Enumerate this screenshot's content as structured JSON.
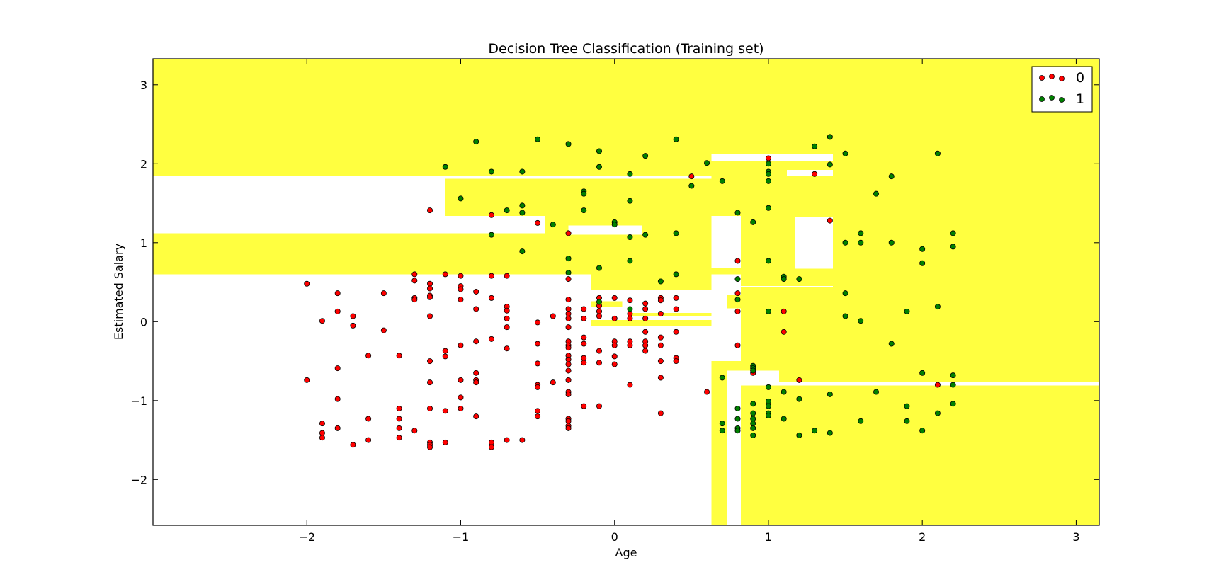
{
  "chart_data": {
    "type": "scatter",
    "title": "Decision Tree Classification (Training set)",
    "xlabel": "Age",
    "ylabel": "Estimated Salary",
    "xlim": [
      -3.0,
      3.15
    ],
    "ylim": [
      -2.58,
      3.33
    ],
    "xticks": [
      -2,
      -1,
      0,
      1,
      2,
      3
    ],
    "yticks": [
      -2,
      -1,
      0,
      1,
      2,
      3
    ],
    "xtick_labels": [
      "−2",
      "−1",
      "0",
      "1",
      "2",
      "3"
    ],
    "ytick_labels": [
      "−2",
      "−1",
      "0",
      "1",
      "2",
      "3"
    ],
    "grid": false,
    "legend": {
      "placement": "top-right",
      "entries": [
        {
          "label": "0",
          "color": "#ff0000"
        },
        {
          "label": "1",
          "color": "#008000"
        }
      ]
    },
    "region_colors": {
      "class_0": "#ffffff",
      "class_1": "#ffff40"
    },
    "regions_class1": [
      [
        -3.0,
        3.15,
        1.84,
        3.33
      ],
      [
        -3.0,
        3.15,
        0.6,
        1.12
      ],
      [
        -1.1,
        0.63,
        1.34,
        1.81
      ],
      [
        -0.45,
        0.63,
        1.1,
        1.34
      ],
      [
        -0.15,
        0.63,
        0.4,
        1.1
      ],
      [
        0.63,
        3.15,
        1.34,
        1.84
      ],
      [
        0.82,
        3.15,
        0.45,
        1.34
      ],
      [
        1.42,
        3.15,
        -0.72,
        0.45
      ],
      [
        1.42,
        3.15,
        -0.77,
        -0.72
      ],
      [
        1.07,
        1.42,
        -0.77,
        0.44
      ],
      [
        0.82,
        1.07,
        -0.62,
        0.44
      ],
      [
        0.82,
        3.15,
        -2.58,
        -0.81
      ],
      [
        0.63,
        0.82,
        -2.58,
        -0.5
      ],
      [
        -0.15,
        0.05,
        0.18,
        0.26
      ],
      [
        0.1,
        0.63,
        0.07,
        0.11
      ],
      [
        -0.15,
        0.63,
        -0.05,
        0.02
      ],
      [
        0.73,
        0.82,
        0.17,
        0.34
      ]
    ],
    "regions_class0": [
      [
        0.63,
        1.42,
        2.04,
        2.12
      ],
      [
        1.12,
        1.42,
        1.84,
        1.92
      ],
      [
        -0.3,
        0.18,
        1.1,
        1.22
      ],
      [
        0.63,
        0.82,
        0.68,
        1.33
      ],
      [
        1.17,
        1.42,
        0.67,
        1.33
      ],
      [
        0.63,
        0.73,
        0.34,
        0.45
      ],
      [
        0.05,
        0.63,
        0.11,
        0.26
      ],
      [
        0.63,
        0.73,
        -0.5,
        0.45
      ],
      [
        0.73,
        0.82,
        -1.38,
        -0.62
      ],
      [
        0.73,
        0.82,
        -2.58,
        -1.38
      ]
    ],
    "series": [
      {
        "name": "0",
        "color": "#ff0000",
        "points": [
          [
            -2.0,
            0.48
          ],
          [
            -1.9,
            0.01
          ],
          [
            -1.8,
            0.36
          ],
          [
            -1.8,
            0.13
          ],
          [
            -1.7,
            0.07
          ],
          [
            -1.7,
            -0.05
          ],
          [
            -1.5,
            0.36
          ],
          [
            -1.5,
            -0.11
          ],
          [
            -1.4,
            -0.43
          ],
          [
            -1.3,
            0.6
          ],
          [
            -1.3,
            0.52
          ],
          [
            -1.3,
            0.3
          ],
          [
            -1.3,
            0.28
          ],
          [
            -1.2,
            1.41
          ],
          [
            -1.2,
            0.48
          ],
          [
            -1.2,
            0.42
          ],
          [
            -1.2,
            0.33
          ],
          [
            -1.2,
            0.31
          ],
          [
            -1.2,
            0.07
          ],
          [
            -1.1,
            0.6
          ],
          [
            -1.1,
            -0.37
          ],
          [
            -1.1,
            -0.44
          ],
          [
            -1.0,
            0.58
          ],
          [
            -1.0,
            0.45
          ],
          [
            -1.0,
            0.41
          ],
          [
            -1.0,
            0.28
          ],
          [
            -1.0,
            -0.3
          ],
          [
            -0.9,
            0.38
          ],
          [
            -0.9,
            0.16
          ],
          [
            -0.9,
            -0.25
          ],
          [
            -0.8,
            1.35
          ],
          [
            -0.8,
            0.58
          ],
          [
            -0.8,
            0.3
          ],
          [
            -0.8,
            -0.22
          ],
          [
            -0.7,
            0.58
          ],
          [
            -0.7,
            0.19
          ],
          [
            -0.7,
            0.14
          ],
          [
            -0.7,
            0.04
          ],
          [
            -0.7,
            -0.07
          ],
          [
            -0.7,
            -0.34
          ],
          [
            -0.5,
            1.25
          ],
          [
            -0.5,
            -0.01
          ],
          [
            -0.5,
            -0.28
          ],
          [
            -0.4,
            0.07
          ],
          [
            -0.3,
            1.12
          ],
          [
            -0.3,
            0.54
          ],
          [
            -0.3,
            0.28
          ],
          [
            -0.3,
            0.16
          ],
          [
            -0.3,
            0.1
          ],
          [
            -0.3,
            0.04
          ],
          [
            -0.3,
            -0.07
          ],
          [
            -0.3,
            -0.25
          ],
          [
            -0.3,
            -0.3
          ],
          [
            -0.3,
            -0.33
          ],
          [
            -0.3,
            -0.43
          ],
          [
            -0.3,
            -0.48
          ],
          [
            -0.3,
            -0.54
          ],
          [
            -0.2,
            0.16
          ],
          [
            -0.2,
            0.04
          ],
          [
            -0.2,
            -0.2
          ],
          [
            -0.2,
            -0.28
          ],
          [
            -0.2,
            -0.46
          ],
          [
            -0.2,
            -0.52
          ],
          [
            -0.1,
            0.3
          ],
          [
            -0.1,
            0.2
          ],
          [
            -0.1,
            0.13
          ],
          [
            -0.1,
            0.07
          ],
          [
            -0.1,
            -0.37
          ],
          [
            -0.1,
            -0.52
          ],
          [
            0.0,
            0.3
          ],
          [
            0.0,
            0.04
          ],
          [
            0.0,
            -0.25
          ],
          [
            0.0,
            -0.3
          ],
          [
            0.0,
            -0.44
          ],
          [
            0.0,
            -0.54
          ],
          [
            0.1,
            0.27
          ],
          [
            0.1,
            0.1
          ],
          [
            0.1,
            0.04
          ],
          [
            0.1,
            -0.25
          ],
          [
            0.1,
            -0.3
          ],
          [
            0.2,
            0.23
          ],
          [
            0.2,
            0.16
          ],
          [
            0.2,
            0.04
          ],
          [
            0.2,
            -0.13
          ],
          [
            0.2,
            -0.25
          ],
          [
            0.2,
            -0.3
          ],
          [
            0.2,
            -0.37
          ],
          [
            0.3,
            0.3
          ],
          [
            0.3,
            0.27
          ],
          [
            0.3,
            0.1
          ],
          [
            0.3,
            -0.2
          ],
          [
            0.3,
            -0.3
          ],
          [
            0.3,
            -0.5
          ],
          [
            0.4,
            0.3
          ],
          [
            0.4,
            0.16
          ],
          [
            0.4,
            -0.13
          ],
          [
            0.4,
            -0.46
          ],
          [
            0.4,
            -0.5
          ],
          [
            0.5,
            1.84
          ],
          [
            0.8,
            0.77
          ],
          [
            0.8,
            0.36
          ],
          [
            0.8,
            0.13
          ],
          [
            0.8,
            -0.3
          ],
          [
            1.0,
            2.07
          ],
          [
            1.1,
            0.13
          ],
          [
            1.1,
            -0.13
          ],
          [
            1.3,
            1.87
          ],
          [
            1.4,
            1.28
          ],
          [
            2.1,
            -0.8
          ],
          [
            -2.0,
            -0.74
          ],
          [
            -1.9,
            -1.29
          ],
          [
            -1.9,
            -1.41
          ],
          [
            -1.9,
            -1.47
          ],
          [
            -1.8,
            -0.59
          ],
          [
            -1.8,
            -0.98
          ],
          [
            -1.8,
            -1.35
          ],
          [
            -1.7,
            -1.56
          ],
          [
            -1.6,
            -1.23
          ],
          [
            -1.6,
            -1.5
          ],
          [
            -1.6,
            -0.43
          ],
          [
            -1.4,
            -1.1
          ],
          [
            -1.4,
            -1.23
          ],
          [
            -1.4,
            -1.35
          ],
          [
            -1.4,
            -1.47
          ],
          [
            -1.3,
            -1.38
          ],
          [
            -1.2,
            -0.5
          ],
          [
            -1.2,
            -0.77
          ],
          [
            -1.2,
            -1.1
          ],
          [
            -1.2,
            -1.53
          ],
          [
            -1.2,
            -1.56
          ],
          [
            -1.2,
            -1.59
          ],
          [
            -1.1,
            -1.13
          ],
          [
            -1.1,
            -1.53
          ],
          [
            -1.0,
            -0.74
          ],
          [
            -1.0,
            -0.96
          ],
          [
            -1.0,
            -1.1
          ],
          [
            -0.9,
            -0.65
          ],
          [
            -0.9,
            -0.74
          ],
          [
            -0.9,
            -0.77
          ],
          [
            -0.9,
            -1.2
          ],
          [
            -0.8,
            -1.53
          ],
          [
            -0.8,
            -1.59
          ],
          [
            -0.7,
            -1.5
          ],
          [
            -0.6,
            -1.5
          ],
          [
            -0.5,
            -0.53
          ],
          [
            -0.5,
            -0.8
          ],
          [
            -0.5,
            -0.83
          ],
          [
            -0.5,
            -1.13
          ],
          [
            -0.5,
            -1.2
          ],
          [
            -0.4,
            -0.77
          ],
          [
            -0.3,
            -0.62
          ],
          [
            -0.3,
            -0.74
          ],
          [
            -0.3,
            -0.89
          ],
          [
            -0.3,
            -0.92
          ],
          [
            -0.3,
            -1.23
          ],
          [
            -0.3,
            -1.26
          ],
          [
            -0.3,
            -1.32
          ],
          [
            -0.3,
            -1.35
          ],
          [
            -0.2,
            -1.07
          ],
          [
            -0.1,
            -1.07
          ],
          [
            0.1,
            -0.8
          ],
          [
            0.3,
            -0.71
          ],
          [
            0.3,
            -1.16
          ],
          [
            0.6,
            -0.89
          ],
          [
            0.9,
            -0.65
          ],
          [
            1.2,
            -0.74
          ]
        ]
      },
      {
        "name": "1",
        "color": "#008000",
        "points": [
          [
            -1.1,
            1.96
          ],
          [
            -1.0,
            1.56
          ],
          [
            -0.9,
            2.28
          ],
          [
            -0.8,
            1.9
          ],
          [
            -0.8,
            1.1
          ],
          [
            -0.7,
            1.41
          ],
          [
            -0.6,
            1.9
          ],
          [
            -0.6,
            1.47
          ],
          [
            -0.6,
            1.38
          ],
          [
            -0.6,
            0.89
          ],
          [
            -0.5,
            2.31
          ],
          [
            -0.4,
            1.23
          ],
          [
            -0.3,
            2.25
          ],
          [
            -0.3,
            0.8
          ],
          [
            -0.3,
            0.62
          ],
          [
            -0.2,
            1.65
          ],
          [
            -0.2,
            1.62
          ],
          [
            -0.2,
            1.41
          ],
          [
            -0.1,
            2.16
          ],
          [
            -0.1,
            1.96
          ],
          [
            -0.1,
            0.68
          ],
          [
            -0.1,
            0.25
          ],
          [
            0.0,
            1.26
          ],
          [
            0.0,
            1.23
          ],
          [
            0.1,
            1.87
          ],
          [
            0.1,
            1.53
          ],
          [
            0.1,
            1.07
          ],
          [
            0.1,
            0.77
          ],
          [
            0.1,
            0.16
          ],
          [
            0.2,
            2.1
          ],
          [
            0.2,
            1.1
          ],
          [
            0.3,
            0.51
          ],
          [
            0.4,
            2.31
          ],
          [
            0.4,
            1.12
          ],
          [
            0.4,
            0.6
          ],
          [
            0.5,
            1.72
          ],
          [
            0.6,
            2.01
          ],
          [
            0.7,
            1.78
          ],
          [
            0.8,
            1.38
          ],
          [
            0.8,
            0.54
          ],
          [
            0.8,
            0.28
          ],
          [
            0.9,
            1.26
          ],
          [
            1.0,
            2.0
          ],
          [
            1.0,
            1.9
          ],
          [
            1.0,
            1.87
          ],
          [
            1.0,
            1.78
          ],
          [
            1.0,
            1.44
          ],
          [
            1.0,
            0.77
          ],
          [
            1.0,
            0.13
          ],
          [
            1.1,
            0.57
          ],
          [
            1.1,
            0.54
          ],
          [
            1.2,
            0.54
          ],
          [
            1.3,
            2.22
          ],
          [
            1.4,
            2.34
          ],
          [
            1.4,
            1.99
          ],
          [
            1.5,
            2.13
          ],
          [
            1.5,
            1.0
          ],
          [
            1.5,
            0.36
          ],
          [
            1.5,
            0.07
          ],
          [
            1.6,
            1.12
          ],
          [
            1.6,
            1.0
          ],
          [
            1.6,
            0.01
          ],
          [
            1.7,
            1.62
          ],
          [
            1.8,
            1.84
          ],
          [
            1.8,
            1.0
          ],
          [
            1.8,
            -0.28
          ],
          [
            1.9,
            0.13
          ],
          [
            2.0,
            0.92
          ],
          [
            2.0,
            0.74
          ],
          [
            2.1,
            2.13
          ],
          [
            2.1,
            0.19
          ],
          [
            2.2,
            1.12
          ],
          [
            2.2,
            0.95
          ],
          [
            0.7,
            -0.71
          ],
          [
            0.7,
            -1.29
          ],
          [
            0.7,
            -1.38
          ],
          [
            0.8,
            -1.1
          ],
          [
            0.8,
            -1.23
          ],
          [
            0.8,
            -1.35
          ],
          [
            0.8,
            -1.38
          ],
          [
            0.9,
            -0.56
          ],
          [
            0.9,
            -0.59
          ],
          [
            0.9,
            -0.62
          ],
          [
            0.9,
            -1.04
          ],
          [
            0.9,
            -1.16
          ],
          [
            0.9,
            -1.23
          ],
          [
            0.9,
            -1.29
          ],
          [
            0.9,
            -1.35
          ],
          [
            0.9,
            -1.44
          ],
          [
            1.0,
            -0.83
          ],
          [
            1.0,
            -1.01
          ],
          [
            1.0,
            -1.07
          ],
          [
            1.0,
            -1.16
          ],
          [
            1.0,
            -1.19
          ],
          [
            1.1,
            -0.89
          ],
          [
            1.1,
            -1.23
          ],
          [
            1.2,
            -0.98
          ],
          [
            1.2,
            -1.44
          ],
          [
            1.3,
            -1.38
          ],
          [
            1.4,
            -0.92
          ],
          [
            1.4,
            -1.41
          ],
          [
            1.6,
            -1.26
          ],
          [
            1.7,
            -0.89
          ],
          [
            1.9,
            -1.07
          ],
          [
            1.9,
            -1.26
          ],
          [
            2.0,
            -0.65
          ],
          [
            2.0,
            -1.38
          ],
          [
            2.1,
            -1.16
          ],
          [
            2.2,
            -0.68
          ],
          [
            2.2,
            -0.8
          ],
          [
            2.2,
            -1.04
          ]
        ]
      }
    ]
  }
}
